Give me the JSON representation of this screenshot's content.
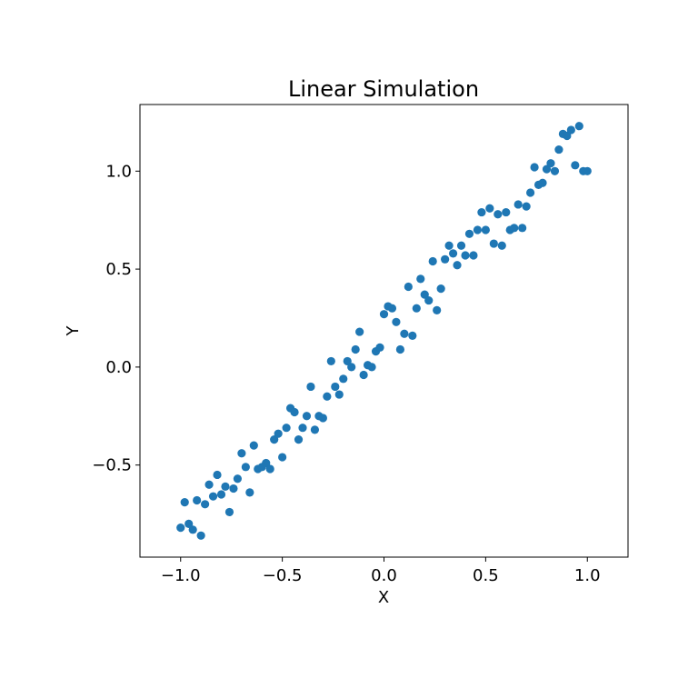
{
  "chart_data": {
    "type": "scatter",
    "title": "Linear Simulation",
    "xlabel": "X",
    "ylabel": "Y",
    "xlim": [
      -1.2,
      1.2
    ],
    "ylim": [
      -0.97,
      1.34
    ],
    "xticks": [
      {
        "value": -1.0,
        "label": "−1.0"
      },
      {
        "value": -0.5,
        "label": "−0.5"
      },
      {
        "value": 0.0,
        "label": "0.0"
      },
      {
        "value": 0.5,
        "label": "0.5"
      },
      {
        "value": 1.0,
        "label": "1.0"
      }
    ],
    "yticks": [
      {
        "value": -0.5,
        "label": "−0.5"
      },
      {
        "value": 0.0,
        "label": "0.0"
      },
      {
        "value": 0.5,
        "label": "0.5"
      },
      {
        "value": 1.0,
        "label": "1.0"
      }
    ],
    "grid": false,
    "legend": "none",
    "point_color": "#1f77b4",
    "x": [
      -1.0,
      -0.98,
      -0.96,
      -0.94,
      -0.92,
      -0.9,
      -0.88,
      -0.86,
      -0.84,
      -0.82,
      -0.8,
      -0.78,
      -0.76,
      -0.74,
      -0.72,
      -0.7,
      -0.68,
      -0.66,
      -0.64,
      -0.62,
      -0.6,
      -0.58,
      -0.56,
      -0.54,
      -0.52,
      -0.5,
      -0.48,
      -0.46,
      -0.44,
      -0.42,
      -0.4,
      -0.38,
      -0.36,
      -0.34,
      -0.32,
      -0.3,
      -0.28,
      -0.26,
      -0.24,
      -0.22,
      -0.2,
      -0.18,
      -0.16,
      -0.14,
      -0.12,
      -0.1,
      -0.08,
      -0.06,
      -0.04,
      -0.02,
      0.0,
      0.02,
      0.04,
      0.06,
      0.08,
      0.1,
      0.12,
      0.14,
      0.16,
      0.18,
      0.2,
      0.22,
      0.24,
      0.26,
      0.28,
      0.3,
      0.32,
      0.34,
      0.36,
      0.38,
      0.4,
      0.42,
      0.44,
      0.46,
      0.48,
      0.5,
      0.52,
      0.54,
      0.56,
      0.58,
      0.6,
      0.62,
      0.64,
      0.66,
      0.68,
      0.7,
      0.72,
      0.74,
      0.76,
      0.78,
      0.8,
      0.82,
      0.84,
      0.86,
      0.88,
      0.9,
      0.92,
      0.94,
      0.96,
      0.98,
      1.0
    ],
    "y": [
      -0.82,
      -0.69,
      -0.8,
      -0.83,
      -0.68,
      -0.86,
      -0.7,
      -0.6,
      -0.66,
      -0.55,
      -0.65,
      -0.61,
      -0.74,
      -0.62,
      -0.57,
      -0.44,
      -0.51,
      -0.64,
      -0.4,
      -0.52,
      -0.51,
      -0.49,
      -0.52,
      -0.37,
      -0.34,
      -0.46,
      -0.31,
      -0.21,
      -0.23,
      -0.37,
      -0.31,
      -0.25,
      -0.1,
      -0.32,
      -0.25,
      -0.26,
      -0.15,
      0.03,
      -0.1,
      -0.14,
      -0.06,
      0.03,
      0.0,
      0.09,
      0.18,
      -0.04,
      0.01,
      0.0,
      0.08,
      0.1,
      0.27,
      0.31,
      0.3,
      0.23,
      0.09,
      0.17,
      0.41,
      0.16,
      0.3,
      0.45,
      0.37,
      0.34,
      0.54,
      0.29,
      0.4,
      0.55,
      0.62,
      0.58,
      0.52,
      0.62,
      0.57,
      0.68,
      0.57,
      0.7,
      0.79,
      0.7,
      0.81,
      0.63,
      0.78,
      0.62,
      0.79,
      0.7,
      0.71,
      0.83,
      0.71,
      0.82,
      0.89,
      1.02,
      0.93,
      0.94,
      1.01,
      1.04,
      1.0,
      1.11,
      1.19,
      1.18,
      1.21,
      1.03,
      1.23,
      1.0,
      1.0
    ]
  }
}
